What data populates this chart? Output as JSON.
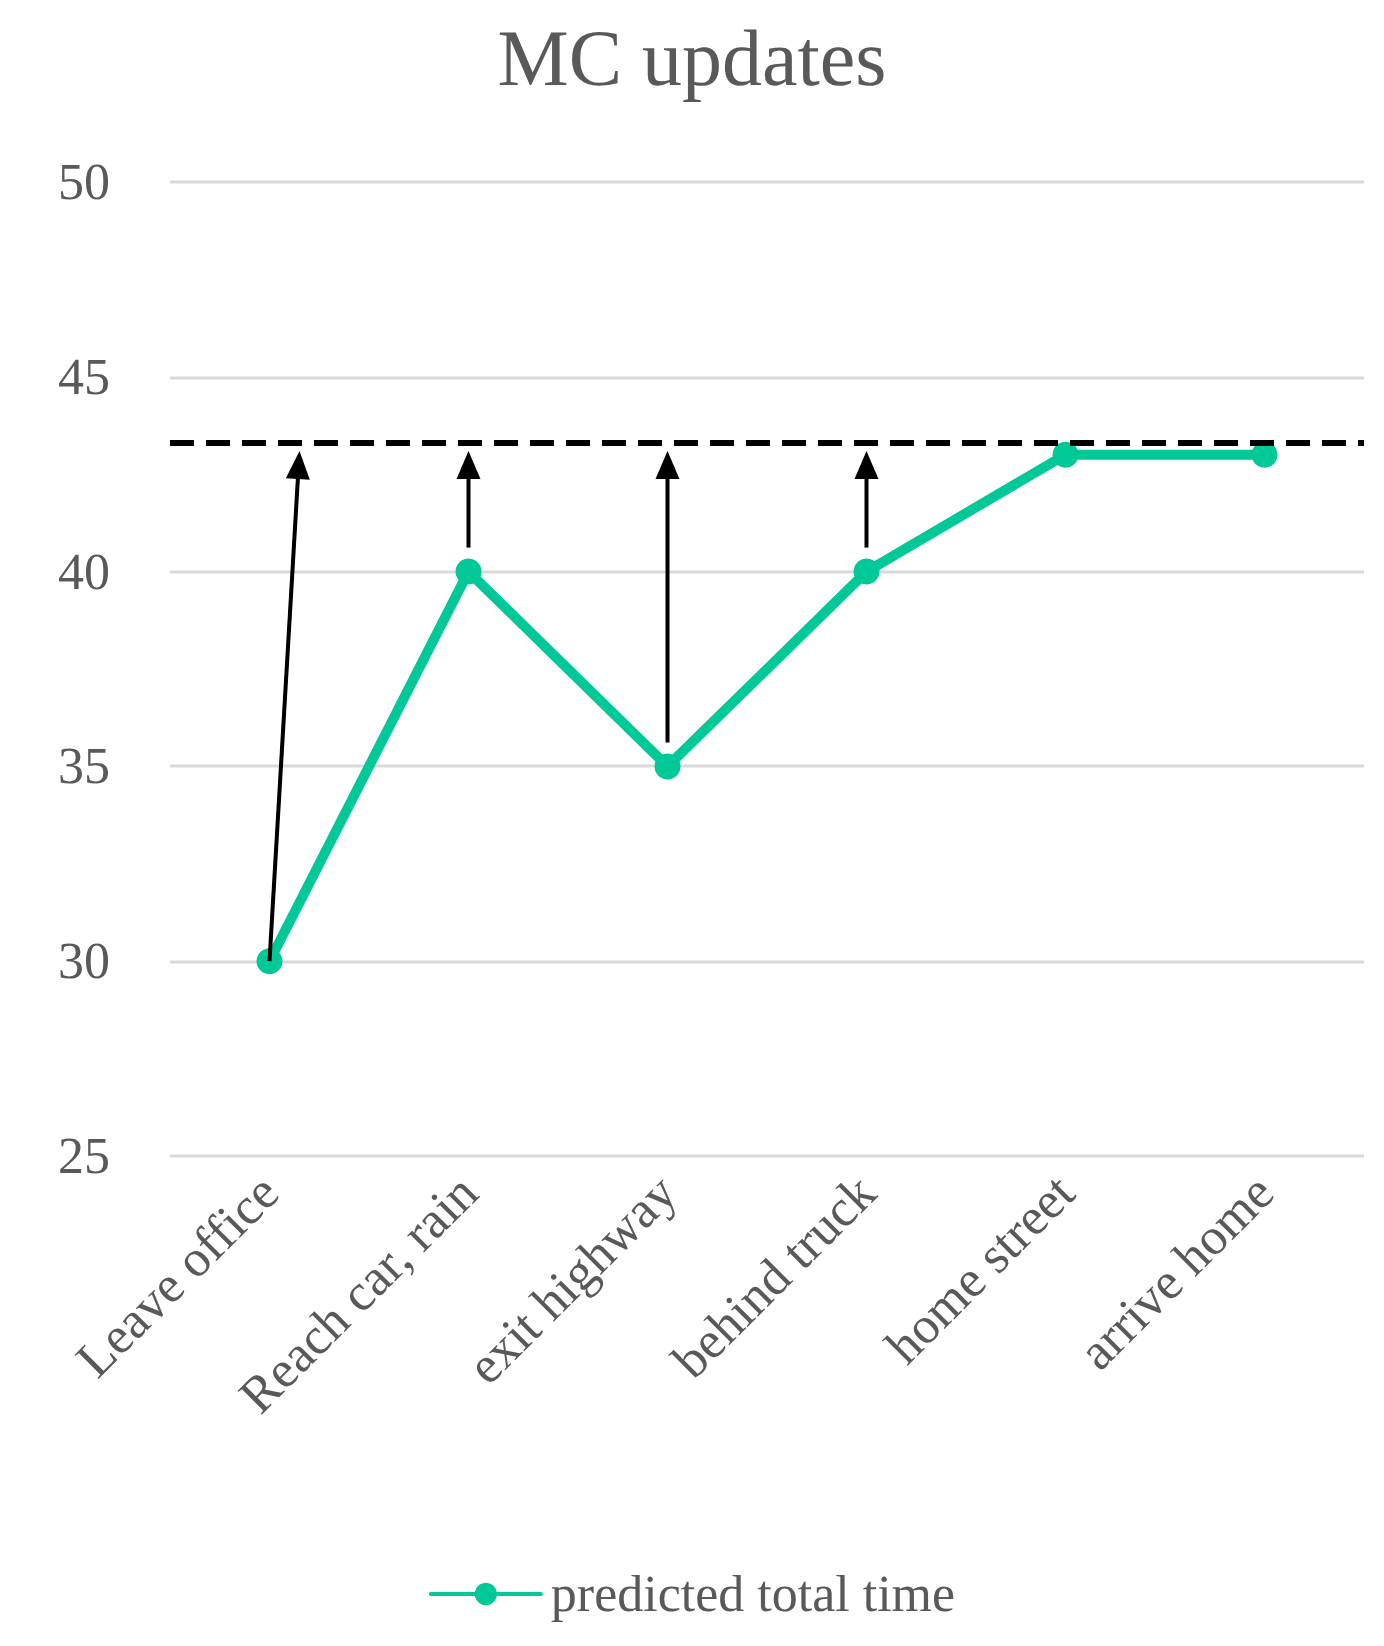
{
  "chart_data": {
    "type": "line",
    "title": "MC updates",
    "categories": [
      "Leave office",
      "Reach car, rain",
      "exit highway",
      "behind truck",
      "home street",
      "arrive home"
    ],
    "series": [
      {
        "name": "predicted total time",
        "color": "#00c896",
        "values": [
          30,
          40,
          35,
          40,
          43,
          43
        ]
      }
    ],
    "ylim": [
      25,
      50
    ],
    "yticks": [
      25,
      30,
      35,
      40,
      45,
      50
    ],
    "grid": "y",
    "legend": "bottom",
    "marker": "circle",
    "line_style": "solid",
    "ref_lines": [
      {
        "axis": "y",
        "value": 43.3,
        "color": "#000000",
        "line_style": "dashed"
      }
    ]
  }
}
